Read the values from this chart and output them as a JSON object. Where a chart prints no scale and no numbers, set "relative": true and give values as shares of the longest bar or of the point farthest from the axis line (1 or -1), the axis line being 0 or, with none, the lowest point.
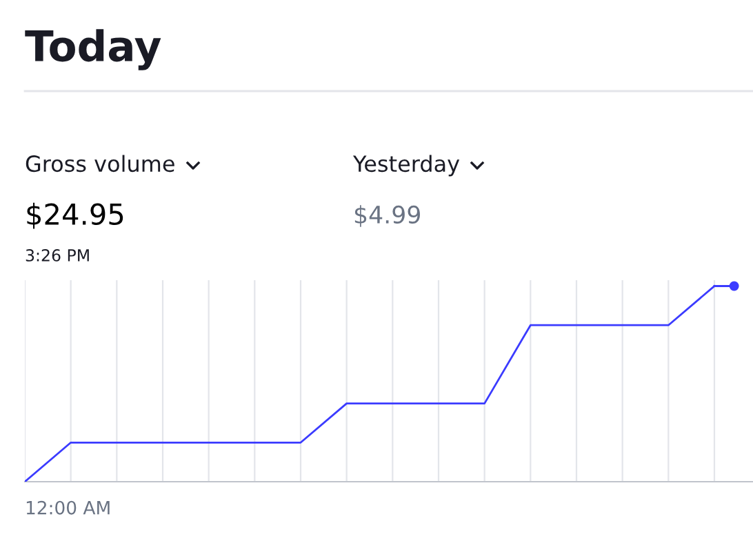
{
  "chart_data": {
    "type": "line",
    "title": "Today",
    "relative": true,
    "annotations": [
      "Gross volume",
      "$24.95",
      "3:26 PM",
      "Yesterday",
      "$4.99",
      "12:00 AM"
    ],
    "categories": [
      null,
      null,
      null,
      null,
      null,
      null,
      null,
      null,
      null,
      null,
      null,
      null,
      null,
      null,
      null,
      null
    ],
    "grid": "x",
    "legend": false,
    "series": [
      {
        "color": "#3b3bff",
        "values": [
          0,
          0.2,
          0.2,
          0.2,
          0.2,
          0.2,
          0.2,
          0.4,
          0.4,
          0.4,
          0.4,
          0.8,
          0.8,
          0.8,
          0.8,
          1
        ]
      }
    ]
  }
}
